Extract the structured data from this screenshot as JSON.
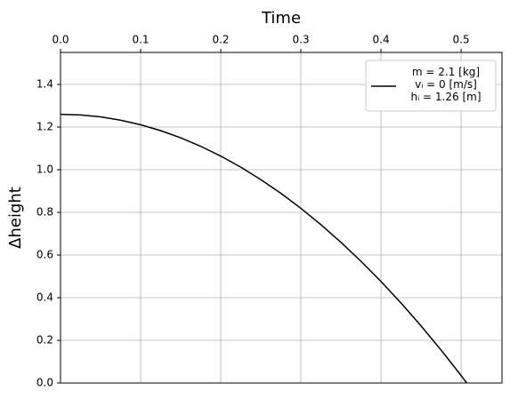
{
  "chart_data": {
    "type": "line",
    "title": "Time",
    "y_label": "Δheight",
    "x": [
      0,
      0.025,
      0.05,
      0.075,
      0.1,
      0.125,
      0.15,
      0.175,
      0.2,
      0.225,
      0.25,
      0.275,
      0.3,
      0.325,
      0.35,
      0.375,
      0.4,
      0.425,
      0.45,
      0.475,
      0.5,
      0.507
    ],
    "series": [
      {
        "name": "m = 2.1 [kg]\nvᵢ = 0 [m/s]\nhᵢ = 1.26 [m]",
        "color": "#000000",
        "values": [
          1.26,
          1.2569,
          1.2478,
          1.2324,
          1.211,
          1.1834,
          1.1498,
          1.1099,
          1.064,
          1.0119,
          0.9538,
          0.8894,
          0.819,
          0.7424,
          0.6598,
          0.5709,
          0.476,
          0.3749,
          0.2678,
          0.1544,
          0.035,
          0.0
        ]
      }
    ],
    "xlim": [
      0,
      0.551
    ],
    "ylim": [
      0,
      1.55
    ],
    "xticks": [
      {
        "value": 0,
        "label": "0.0"
      },
      0.1,
      0.2,
      0.3,
      0.4,
      0.5
    ],
    "yticks": [
      {
        "value": 0,
        "label": "0.0"
      },
      0.2,
      0.4,
      0.6,
      0.8,
      {
        "value": 1,
        "label": "1.0"
      },
      1.2,
      1.4
    ],
    "grid": true,
    "legend": "upper right"
  }
}
